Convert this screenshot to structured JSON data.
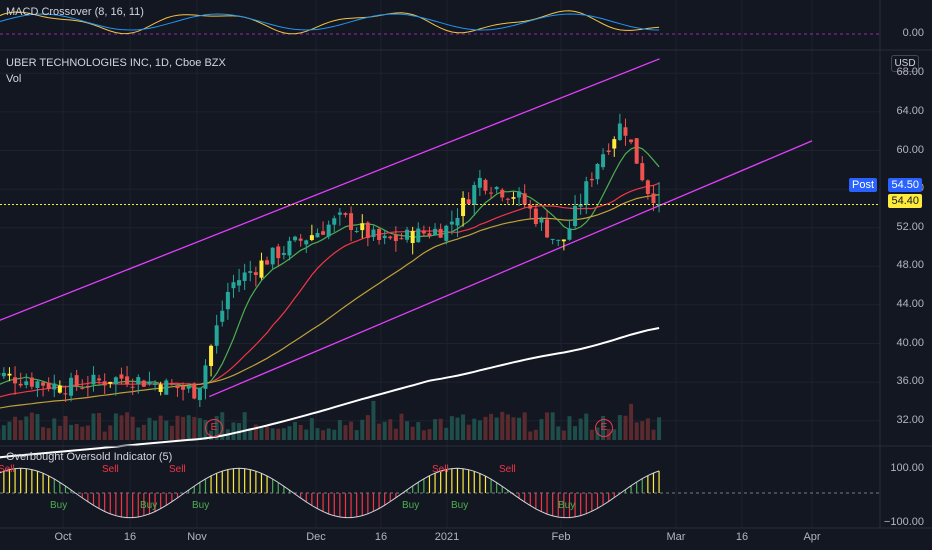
{
  "macd": {
    "title": "MACD Crossover (8, 16, 11)",
    "zero_label": "0.00"
  },
  "main": {
    "title": "UBER TECHNOLOGIES INC, 1D, Cboe BZX",
    "vol_label": "Vol",
    "currency_button": "USD",
    "price_axis": [
      "68.00",
      "64.00",
      "60.00",
      "56.00",
      "52.00",
      "48.00",
      "44.00",
      "40.00",
      "36.00",
      "32.00"
    ],
    "post_label": "Post",
    "post_price": "54.50",
    "last_price": "54.40",
    "earnings_badge": "E"
  },
  "oscillator": {
    "title": "Overbought Oversold Indicator (5)",
    "axis": [
      "100.00",
      "−100.00"
    ],
    "sell_label": "Sell",
    "buy_label": "Buy"
  },
  "time_axis": [
    "Oct",
    "16",
    "Nov",
    "Dec",
    "16",
    "2021",
    "Feb",
    "Mar",
    "16",
    "Apr"
  ],
  "colors": {
    "background": "#131722",
    "up_candle": "#26a69a",
    "down_candle": "#ef5350",
    "channel": "#e040fb",
    "sma20": "#4caf50",
    "sma50": "#f23645",
    "sma100": "#bfa13a",
    "sma200": "#ffffff",
    "post_tag": "#2962ff",
    "last_tag": "#ffeb3b",
    "macd_line": "#f5c344",
    "signal_line": "#2196f3"
  },
  "chart_data": {
    "type": "candlestick",
    "title": "UBER TECHNOLOGIES INC, 1D, Cboe BZX",
    "y_range": [
      30,
      70
    ],
    "channel": {
      "upper": [
        {
          "date": "2020-09-01",
          "price": 39.5
        },
        {
          "date": "2021-02-25",
          "price": 69.5
        }
      ],
      "lower": [
        {
          "date": "2020-11-05",
          "price": 34.5
        },
        {
          "date": "2021-04-01",
          "price": 61
        }
      ]
    },
    "sessions": [
      {
        "date": "2020-09-14",
        "price": 37.0
      },
      {
        "date": "2020-10-01",
        "price": 35.5
      },
      {
        "date": "2020-10-15",
        "price": 36.5
      },
      {
        "date": "2020-11-02",
        "price": 35.0
      },
      {
        "date": "2020-11-10",
        "price": 46.0
      },
      {
        "date": "2020-11-20",
        "price": 49.0
      },
      {
        "date": "2020-12-07",
        "price": 53.0
      },
      {
        "date": "2020-12-16",
        "price": 50.5
      },
      {
        "date": "2021-01-04",
        "price": 52.0
      },
      {
        "date": "2021-01-12",
        "price": 57.0
      },
      {
        "date": "2021-01-22",
        "price": 55.0
      },
      {
        "date": "2021-02-01",
        "price": 50.0
      },
      {
        "date": "2021-02-10",
        "price": 59.0
      },
      {
        "date": "2021-02-16",
        "price": 63.0
      },
      {
        "date": "2021-02-22",
        "price": 56.0
      },
      {
        "date": "2021-02-26",
        "price": 54.4
      }
    ],
    "last": 54.4,
    "post": 54.5
  }
}
